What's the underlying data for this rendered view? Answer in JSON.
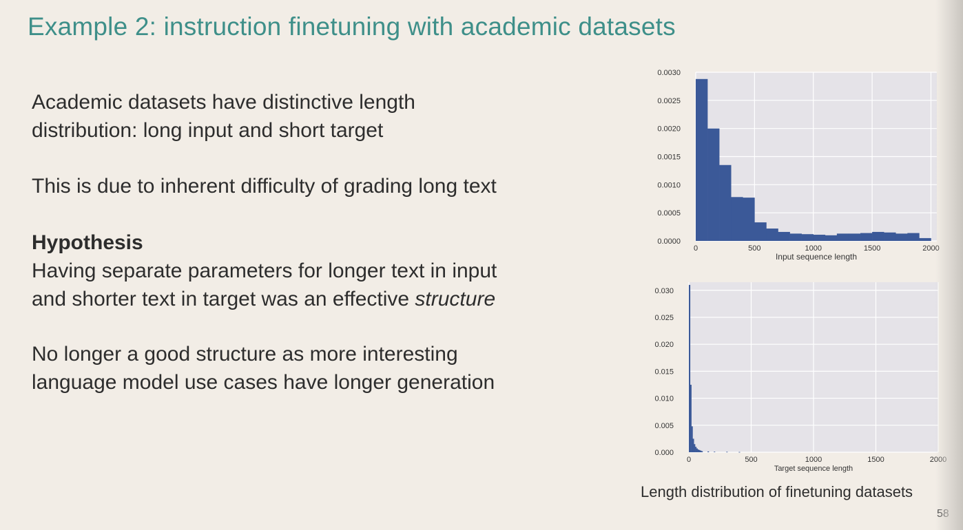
{
  "slide": {
    "title": "Example 2: instruction finetuning with academic datasets",
    "para1": [
      "Academic datasets have distinctive length",
      "distribution: long input and short target"
    ],
    "para2": "This is due to inherent difficulty of grading long text",
    "hypothesis_heading": "Hypothesis",
    "hypothesis_line1": "Having separate parameters for longer text in input",
    "hypothesis_line2_pre": "and shorter text in target was an effective ",
    "hypothesis_line2_em": "structure",
    "para4": [
      "No longer a good structure as more interesting",
      "language model use cases have longer generation"
    ],
    "caption": "Length distribution of finetuning datasets",
    "page_number": "58"
  },
  "chart_data": [
    {
      "type": "bar",
      "xlabel": "Input sequence length",
      "ylabel": "",
      "xlim": [
        0,
        2050
      ],
      "ylim": [
        0,
        0.003
      ],
      "x_ticks": [
        0,
        500,
        1000,
        1500,
        2000
      ],
      "x_tick_labels": [
        "0",
        "500",
        "1000",
        "1500",
        "2000"
      ],
      "y_ticks": [
        0,
        0.0005,
        0.001,
        0.0015,
        0.002,
        0.0025,
        0.003
      ],
      "y_tick_labels": [
        "0.0000",
        "0.0005",
        "0.0010",
        "0.0015",
        "0.0020",
        "0.0025",
        "0.0030"
      ],
      "grid": true,
      "bin_width": 100,
      "bin_starts": [
        0,
        100,
        200,
        300,
        400,
        500,
        600,
        700,
        800,
        900,
        1000,
        1100,
        1200,
        1300,
        1400,
        1500,
        1600,
        1700,
        1800,
        1900
      ],
      "values": [
        0.00288,
        0.002,
        0.00135,
        0.00078,
        0.00077,
        0.00033,
        0.00022,
        0.00016,
        0.00013,
        0.00012,
        0.00011,
        0.0001,
        0.00013,
        0.00013,
        0.00014,
        0.00016,
        0.00015,
        0.00013,
        0.00014,
        5e-05
      ],
      "bar_color": "#3b5998",
      "plot_background": "#e5e3e8"
    },
    {
      "type": "bar",
      "xlabel": "Target sequence length",
      "ylabel": "",
      "xlim": [
        0,
        2000
      ],
      "ylim": [
        0,
        0.0315
      ],
      "x_ticks": [
        0,
        500,
        1000,
        1500,
        2000
      ],
      "x_tick_labels": [
        "0",
        "500",
        "1000",
        "1500",
        "2000"
      ],
      "y_ticks": [
        0,
        0.005,
        0.01,
        0.015,
        0.02,
        0.025,
        0.03
      ],
      "y_tick_labels": [
        "0.000",
        "0.005",
        "0.010",
        "0.015",
        "0.020",
        "0.025",
        "0.030"
      ],
      "grid": true,
      "bin_width": 10,
      "bin_starts": [
        0,
        10,
        20,
        30,
        40,
        50,
        60,
        70,
        80,
        90,
        100,
        150,
        200,
        300,
        400
      ],
      "values": [
        0.031,
        0.0125,
        0.0048,
        0.0025,
        0.0015,
        0.001,
        0.0007,
        0.0005,
        0.0004,
        0.0003,
        0.0002,
        0.00015,
        0.0001,
        8e-05,
        5e-05
      ],
      "bar_color": "#3b5998",
      "plot_background": "#e5e3e8"
    }
  ]
}
